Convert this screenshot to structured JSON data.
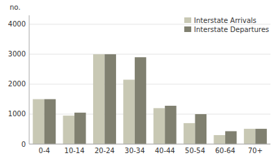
{
  "chart_data": {
    "type": "bar",
    "ylabel": "no.",
    "categories": [
      "0-4",
      "10-14",
      "20-24",
      "30-34",
      "40-44",
      "50-54",
      "60-64",
      "70+"
    ],
    "series": [
      {
        "name": "Interstate Arrivals",
        "color": "#c8c8b4",
        "values": [
          1500,
          950,
          3000,
          2150,
          1200,
          700,
          300,
          510
        ]
      },
      {
        "name": "Interstate Departures",
        "color": "#808070",
        "values": [
          1500,
          1050,
          3000,
          2900,
          1280,
          1000,
          430,
          510
        ]
      }
    ],
    "ylim": [
      0,
      4300
    ],
    "yticks": [
      0,
      1000,
      2000,
      3000,
      4000
    ],
    "grid": true,
    "legend": "upper right"
  }
}
